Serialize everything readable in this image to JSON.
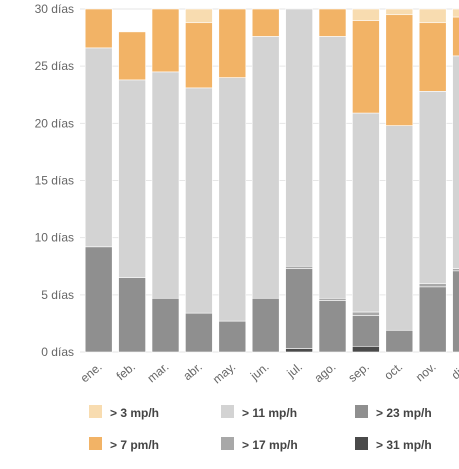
{
  "chart_data": {
    "type": "bar",
    "stacked": true,
    "categories": [
      "ene.",
      "feb.",
      "mar.",
      "abr.",
      "may.",
      "jun.",
      "jul.",
      "ago.",
      "sep.",
      "oct.",
      "nov.",
      "dic."
    ],
    "ylim": [
      0,
      30
    ],
    "yticks": [
      {
        "value": 0,
        "label": "0 días"
      },
      {
        "value": 5,
        "label": "5 días"
      },
      {
        "value": 10,
        "label": "10 días"
      },
      {
        "value": 15,
        "label": "15 días"
      },
      {
        "value": 20,
        "label": "20 días"
      },
      {
        "value": 25,
        "label": "25 días"
      },
      {
        "value": 30,
        "label": "30 días"
      }
    ],
    "series": [
      {
        "name": "> 31 mp/h",
        "color": "#4a4a4a",
        "values": [
          0,
          0,
          0,
          0,
          0,
          0,
          0.3,
          0,
          0.5,
          0,
          0,
          0
        ]
      },
      {
        "name": "> 23 mp/h",
        "color": "#8f8f8f",
        "values": [
          9.2,
          6.5,
          4.7,
          3.4,
          2.7,
          4.7,
          7.0,
          4.5,
          2.7,
          1.9,
          5.7,
          7.1
        ]
      },
      {
        "name": "> 17 mp/h",
        "color": "#a8a8a8",
        "values": [
          0,
          0,
          0,
          0,
          0,
          0,
          0.2,
          0.2,
          0.3,
          0,
          0.3,
          0.2
        ]
      },
      {
        "name": "> 11 mp/h",
        "color": "#d3d3d3",
        "values": [
          17.4,
          17.3,
          19.8,
          19.7,
          21.3,
          22.9,
          22.5,
          22.9,
          17.4,
          17.9,
          16.8,
          18.6
        ]
      },
      {
        "name": "> 7 pm/h",
        "color": "#f2b366",
        "values": [
          3.4,
          4.2,
          5.5,
          5.7,
          6.0,
          2.4,
          0,
          2.4,
          8.1,
          9.7,
          6.0,
          3.4
        ]
      },
      {
        "name": "> 3 mp/h",
        "color": "#f8dcb0",
        "values": [
          0,
          0,
          0,
          1.2,
          0,
          0,
          0,
          0,
          1.0,
          0.5,
          1.2,
          0.7
        ]
      }
    ],
    "legend": {
      "placement": "bottom",
      "order": [
        "> 3 mp/h",
        "> 11 mp/h",
        "> 23 mp/h",
        "> 7 pm/h",
        "> 17 mp/h",
        "> 31 mp/h"
      ]
    },
    "grid": true
  }
}
